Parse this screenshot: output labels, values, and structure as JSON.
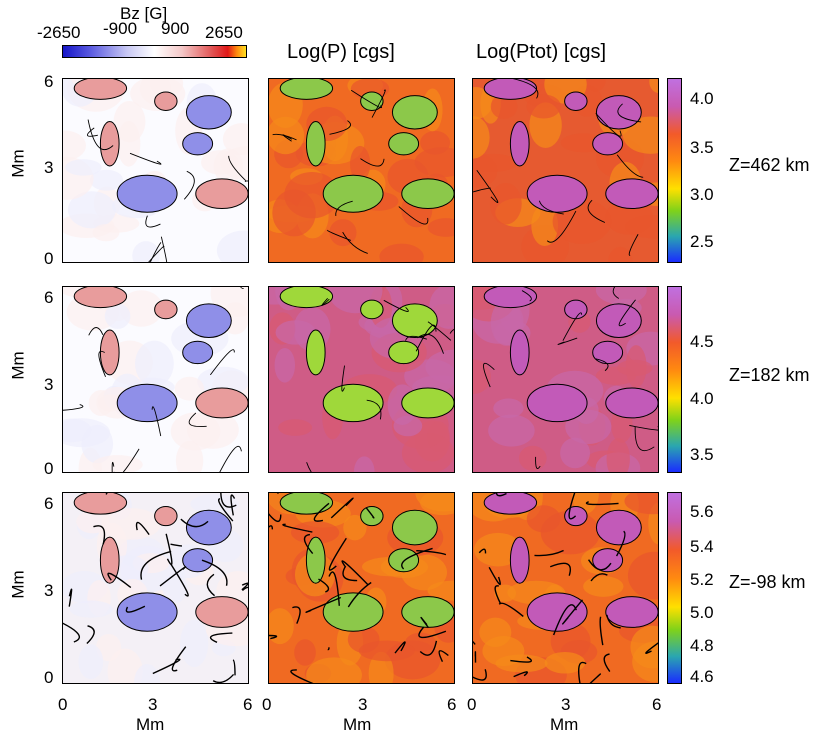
{
  "bz_colorbar": {
    "title": "Bz [G]",
    "ticks": [
      "-2650",
      "-900",
      "900",
      "2650"
    ],
    "colors": [
      "#1b1bd0",
      "#ffffff",
      "#d02020",
      "#ffd020"
    ]
  },
  "column_titles": [
    "Log(P) [cgs]",
    "Log(Ptot) [cgs]"
  ],
  "y_axis": {
    "label": "Mm",
    "ticks": [
      "0",
      "3",
      "6"
    ]
  },
  "x_axis": {
    "label": "Mm",
    "ticks": [
      "0",
      "3",
      "6"
    ]
  },
  "rows": [
    {
      "height_label": "Z=462 km",
      "colorbar_ticks": [
        "4.0",
        "3.5",
        "3.0",
        "2.5"
      ]
    },
    {
      "height_label": "Z=182 km",
      "colorbar_ticks": [
        "4.5",
        "4.0",
        "3.5"
      ]
    },
    {
      "height_label": "Z=-98 km",
      "colorbar_ticks": [
        "5.6",
        "5.4",
        "5.2",
        "5.0",
        "4.8",
        "4.6"
      ]
    }
  ],
  "colors": {
    "pressure_gradient": [
      "#1a2cff",
      "#2aa6b0",
      "#7fd21a",
      "#ffe000",
      "#ff8a10",
      "#f25a2a",
      "#c95ab0",
      "#c070e0"
    ],
    "bz_negative": "#8f8fe8",
    "bz_positive": "#e89c9c"
  }
}
